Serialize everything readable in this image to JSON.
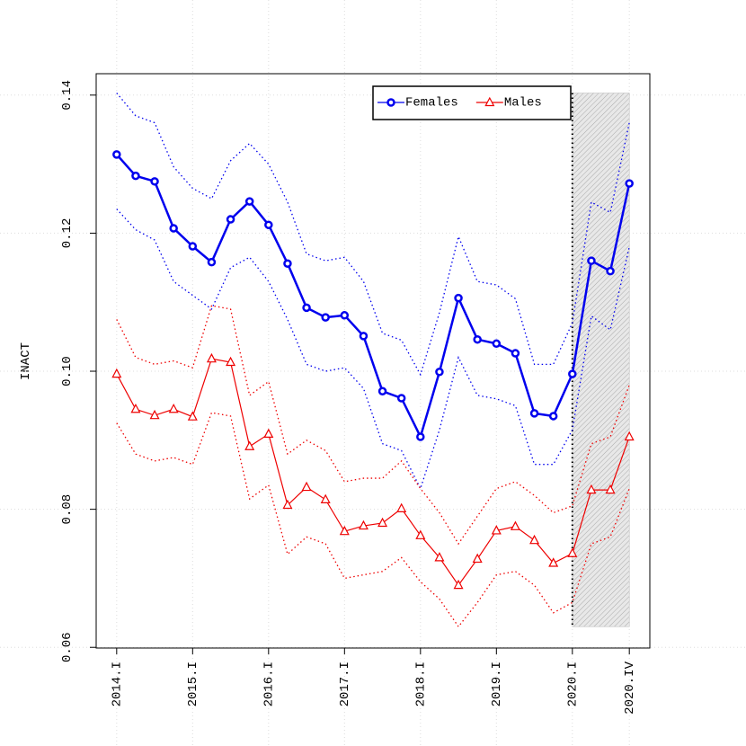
{
  "chart_data": {
    "type": "line",
    "y_label": "INACT",
    "categories": [
      "2014.I",
      null,
      null,
      null,
      "2015.I",
      null,
      null,
      null,
      "2016.I",
      null,
      null,
      null,
      "2017.I",
      null,
      null,
      null,
      "2018.I",
      null,
      null,
      null,
      "2019.I",
      null,
      null,
      null,
      "2020.I",
      null,
      null,
      "2020.IV"
    ],
    "series": [
      {
        "name": "Females",
        "color": "#0000ee",
        "marker": "circle",
        "values": [
          0.1314,
          0.1283,
          0.1275,
          0.1207,
          0.1181,
          0.1158,
          0.122,
          0.1246,
          0.1212,
          0.1156,
          0.1092,
          0.1078,
          0.1081,
          0.1051,
          0.0971,
          0.0961,
          0.0905,
          0.0999,
          0.1106,
          0.1046,
          0.104,
          0.1026,
          0.0939,
          0.0935,
          0.0996,
          0.116,
          0.1145,
          0.1272
        ],
        "upper": [
          0.1403,
          0.137,
          0.136,
          0.1296,
          0.1265,
          0.125,
          0.1305,
          0.133,
          0.13,
          0.1245,
          0.117,
          0.116,
          0.1165,
          0.113,
          0.1055,
          0.1045,
          0.0995,
          0.1085,
          0.1195,
          0.113,
          0.1125,
          0.1105,
          0.101,
          0.101,
          0.107,
          0.1245,
          0.123,
          0.136
        ],
        "lower": [
          0.1235,
          0.1205,
          0.119,
          0.113,
          0.111,
          0.109,
          0.115,
          0.1165,
          0.113,
          0.1075,
          0.101,
          0.1,
          0.1005,
          0.0975,
          0.0895,
          0.0885,
          0.083,
          0.0915,
          0.102,
          0.0965,
          0.096,
          0.095,
          0.0865,
          0.0865,
          0.0915,
          0.108,
          0.106,
          0.118
        ]
      },
      {
        "name": "Males",
        "color": "#ee0000",
        "marker": "triangle",
        "values": [
          0.0996,
          0.0945,
          0.0936,
          0.0945,
          0.0934,
          0.1018,
          0.1013,
          0.0891,
          0.0909,
          0.0806,
          0.0832,
          0.0814,
          0.0768,
          0.0776,
          0.078,
          0.0801,
          0.0762,
          0.073,
          0.069,
          0.0728,
          0.0769,
          0.0775,
          0.0755,
          0.0722,
          0.0736,
          0.0828,
          0.0828,
          0.0905
        ],
        "upper": [
          0.1075,
          0.102,
          0.101,
          0.1015,
          0.1005,
          0.1095,
          0.109,
          0.0965,
          0.0985,
          0.088,
          0.09,
          0.0885,
          0.084,
          0.0845,
          0.0845,
          0.087,
          0.083,
          0.0795,
          0.075,
          0.079,
          0.083,
          0.084,
          0.082,
          0.0795,
          0.0805,
          0.0895,
          0.0905,
          0.098
        ],
        "lower": [
          0.0925,
          0.088,
          0.087,
          0.0875,
          0.0865,
          0.094,
          0.0935,
          0.0815,
          0.0835,
          0.0735,
          0.076,
          0.075,
          0.07,
          0.0705,
          0.071,
          0.073,
          0.0695,
          0.067,
          0.063,
          0.0665,
          0.0705,
          0.071,
          0.069,
          0.065,
          0.0665,
          0.075,
          0.076,
          0.083
        ]
      }
    ],
    "ylim": [
      0.0599,
      0.1431
    ],
    "yticks": [
      {
        "value": 0.06,
        "label": "0.06"
      },
      0.08,
      {
        "value": 0.1,
        "label": "0.10"
      },
      0.12,
      0.14
    ],
    "grid": true,
    "legend": "top-right",
    "shade_from": "2020.I",
    "shade_to": "2020.IV"
  }
}
